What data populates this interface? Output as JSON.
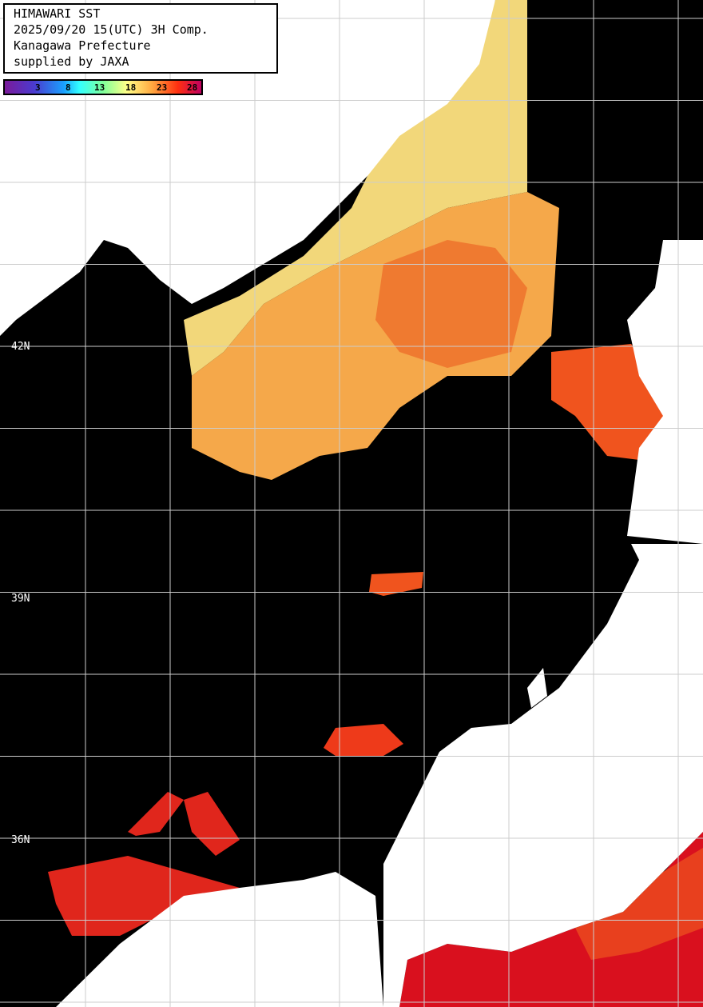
{
  "header": {
    "title": "HIMAWARI SST",
    "datetime": "2025/09/20 15(UTC) 3H Comp.",
    "organization": "Kanagawa Prefecture",
    "credit": "supplied by JAXA"
  },
  "colorbar": {
    "ticks": [
      "3",
      "8",
      "13",
      "18",
      "23",
      "28"
    ],
    "colors": [
      "#7a1a9a",
      "#1aa0ff",
      "#33ffff",
      "#7fff9a",
      "#ffff88",
      "#ffa840",
      "#ff3010",
      "#c00060"
    ]
  },
  "latitude_labels": [
    "42N",
    "39N",
    "36N"
  ],
  "colors": {
    "ocean_nodata": "#000000",
    "land": "#ffffff",
    "grid": "#cccccc"
  }
}
